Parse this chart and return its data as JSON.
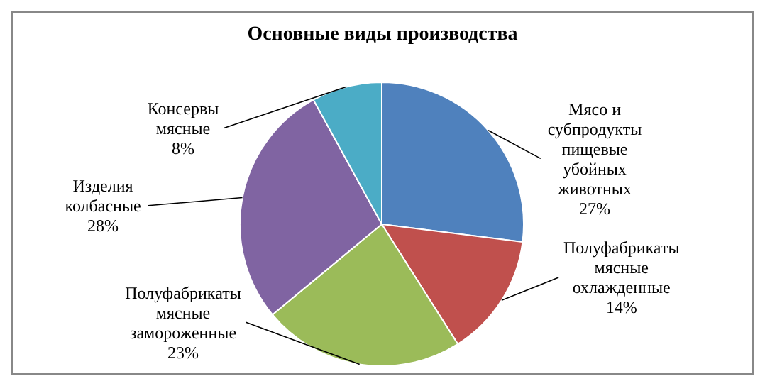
{
  "chart_data": {
    "type": "pie",
    "title": "Основные виды производства",
    "categories": [
      "Мясо и субпродукты пищевые убойных животных",
      "Полуфабрикаты мясные охлажденные",
      "Полуфабрикаты мясные замороженные",
      "Изделия колбасные",
      "Консервы мясные"
    ],
    "values": [
      27,
      14,
      23,
      28,
      8
    ],
    "colors": [
      "#4f81bd",
      "#c0504d",
      "#9bbb59",
      "#8064a2",
      "#4bacc6"
    ],
    "value_labels": [
      "27%",
      "14%",
      "23%",
      "28%",
      "8%"
    ]
  }
}
